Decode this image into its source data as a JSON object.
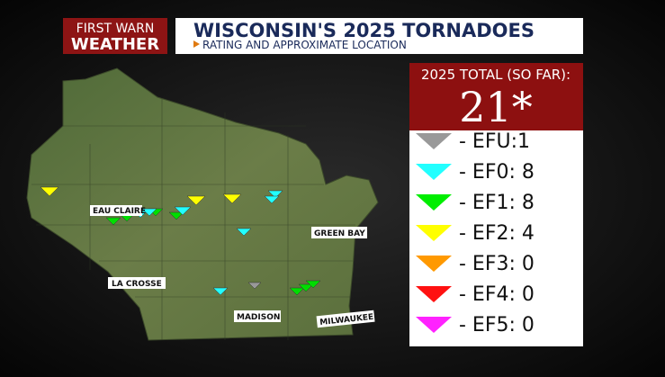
{
  "logo": {
    "line1": "FIRST WARN",
    "line2": "WEATHER"
  },
  "header": {
    "title": "WISCONSIN'S 2025 TORNADOES",
    "subtitle": "RATING AND APPROXIMATE LOCATION"
  },
  "total": {
    "label": "2025 TOTAL (SO FAR):",
    "value": "21*"
  },
  "legend": [
    "- EFU:1",
    "- EF0: 8",
    "- EF1: 8",
    "- EF2: 4",
    "- EF3: 0",
    "- EF4: 0",
    "- EF5: 0"
  ],
  "cities": [
    "EAU CLAIRE",
    "LA CROSSE",
    "MADISON",
    "GREEN BAY",
    "MILWAUKEE"
  ]
}
